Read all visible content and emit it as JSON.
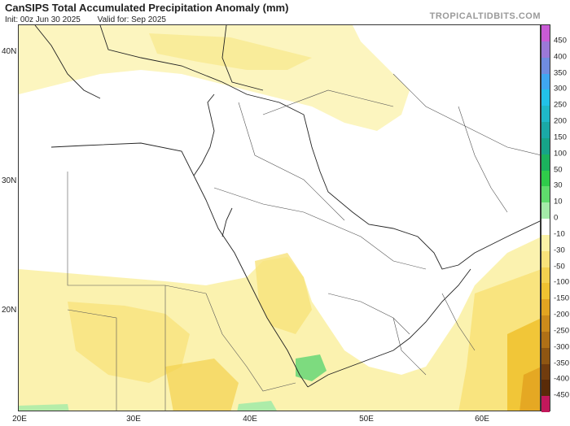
{
  "header": {
    "title": "CanSIPS Total Accumulated Precipitation Anomaly (mm)",
    "init": "Init: 00z Jun 30 2025",
    "valid": "Valid for: Sep 2025",
    "brand": "TROPICALTIDBITS.COM"
  },
  "axes": {
    "lat_labels": [
      "40N",
      "30N",
      "20N"
    ],
    "lon_labels": [
      "20E",
      "30E",
      "40E",
      "50E",
      "60E"
    ]
  },
  "colorbar": {
    "labels": [
      "450",
      "400",
      "350",
      "300",
      "250",
      "200",
      "150",
      "100",
      "50",
      "30",
      "10",
      "0",
      "-10",
      "-30",
      "-50",
      "-100",
      "-150",
      "-200",
      "-250",
      "-300",
      "-350",
      "-400",
      "-450"
    ],
    "colors": [
      "#c95bd6",
      "#9b78d8",
      "#6f8ce0",
      "#3fa6f0",
      "#22c1e8",
      "#1fb8c8",
      "#1aa9a6",
      "#16a488",
      "#1bb35d",
      "#2fcb4a",
      "#5fdc6c",
      "#a4eba8",
      "#ffffff",
      "#fbf1a6",
      "#f8e27a",
      "#f3d14f",
      "#efc231",
      "#e3a421",
      "#cc8a1b",
      "#b07016",
      "#8f5612",
      "#713c0e",
      "#5a2b08",
      "#c2185b"
    ]
  }
}
